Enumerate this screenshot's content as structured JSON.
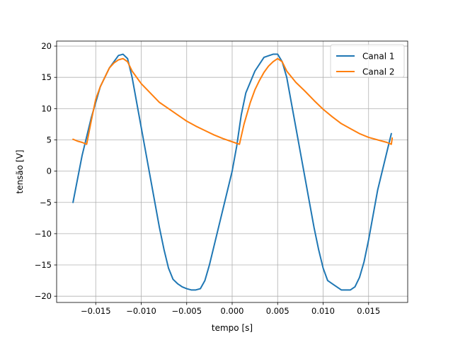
{
  "chart_data": {
    "type": "line",
    "xlabel": "tempo [s]",
    "ylabel": "tensão [V]",
    "xlim": [
      -0.0193,
      0.0193
    ],
    "ylim": [
      -21,
      20.8
    ],
    "x_ticks": [
      -0.015,
      -0.01,
      -0.005,
      0.0,
      0.005,
      0.01,
      0.015
    ],
    "x_tick_labels": [
      "−0.015",
      "−0.010",
      "−0.005",
      "0.000",
      "0.005",
      "0.010",
      "0.015"
    ],
    "y_ticks": [
      -20,
      -15,
      -10,
      -5,
      0,
      5,
      10,
      15,
      20
    ],
    "y_tick_labels": [
      "−20",
      "−15",
      "−10",
      "−5",
      "0",
      "5",
      "10",
      "15",
      "20"
    ],
    "grid": true,
    "legend_position": "top-right",
    "series": [
      {
        "name": "Canal 1",
        "color": "#1f77b4",
        "x": [
          -0.0175,
          -0.0165,
          -0.0155,
          -0.0145,
          -0.0135,
          -0.0125,
          -0.012,
          -0.0115,
          -0.011,
          -0.0105,
          -0.01,
          -0.0095,
          -0.009,
          -0.0085,
          -0.008,
          -0.0075,
          -0.007,
          -0.0065,
          -0.006,
          -0.0055,
          -0.005,
          -0.0045,
          -0.004,
          -0.0035,
          -0.003,
          -0.0025,
          -0.002,
          -0.0015,
          -0.001,
          -0.0005,
          0.0,
          0.0005,
          0.001,
          0.0015,
          0.0025,
          0.0035,
          0.0045,
          0.005,
          0.0055,
          0.006,
          0.0065,
          0.007,
          0.0075,
          0.008,
          0.0085,
          0.009,
          0.0095,
          0.01,
          0.0105,
          0.011,
          0.0115,
          0.012,
          0.0125,
          0.013,
          0.0135,
          0.014,
          0.0145,
          0.015,
          0.0155,
          0.016,
          0.0165,
          0.017,
          0.0175
        ],
        "values": [
          -5.0,
          2.5,
          8.5,
          13.5,
          16.5,
          18.5,
          18.7,
          18.0,
          15.0,
          11.0,
          7.0,
          3.0,
          -1.0,
          -5.0,
          -9.0,
          -12.5,
          -15.5,
          -17.3,
          -18.0,
          -18.5,
          -18.8,
          -19.0,
          -19.0,
          -18.8,
          -17.5,
          -15.0,
          -12.0,
          -9.0,
          -6.0,
          -3.0,
          0.0,
          4.0,
          9.0,
          12.5,
          16.0,
          18.2,
          18.7,
          18.7,
          17.5,
          15.0,
          11.0,
          7.0,
          3.0,
          -1.0,
          -5.0,
          -9.0,
          -12.5,
          -15.5,
          -17.5,
          -18.0,
          -18.5,
          -19.0,
          -19.0,
          -19.0,
          -18.5,
          -17.0,
          -14.5,
          -11.0,
          -7.0,
          -3.0,
          0.0,
          3.0,
          6.0
        ]
      },
      {
        "name": "Canal 2",
        "color": "#ff7f0e",
        "x": [
          -0.0175,
          -0.017,
          -0.0165,
          -0.016,
          -0.0155,
          -0.015,
          -0.0145,
          -0.014,
          -0.0135,
          -0.013,
          -0.0125,
          -0.012,
          -0.0115,
          -0.011,
          -0.01,
          -0.009,
          -0.008,
          -0.007,
          -0.006,
          -0.005,
          -0.004,
          -0.003,
          -0.002,
          -0.001,
          0.0,
          0.0008,
          0.0013,
          0.002,
          0.0025,
          0.003,
          0.0035,
          0.004,
          0.0045,
          0.005,
          0.0055,
          0.006,
          0.007,
          0.008,
          0.009,
          0.01,
          0.011,
          0.012,
          0.013,
          0.014,
          0.015,
          0.016,
          0.017,
          0.0175,
          0.0176
        ],
        "values": [
          5.1,
          4.8,
          4.6,
          4.3,
          8.0,
          11.5,
          13.5,
          15.0,
          16.5,
          17.3,
          17.8,
          18.0,
          17.5,
          16.0,
          14.0,
          12.5,
          11.0,
          10.0,
          9.0,
          8.0,
          7.2,
          6.5,
          5.8,
          5.2,
          4.7,
          4.3,
          7.5,
          11.0,
          13.0,
          14.5,
          15.8,
          16.8,
          17.5,
          18.0,
          17.5,
          16.0,
          14.2,
          12.8,
          11.3,
          9.9,
          8.7,
          7.6,
          6.8,
          6.0,
          5.4,
          5.0,
          4.6,
          4.3,
          5.3
        ]
      }
    ]
  }
}
